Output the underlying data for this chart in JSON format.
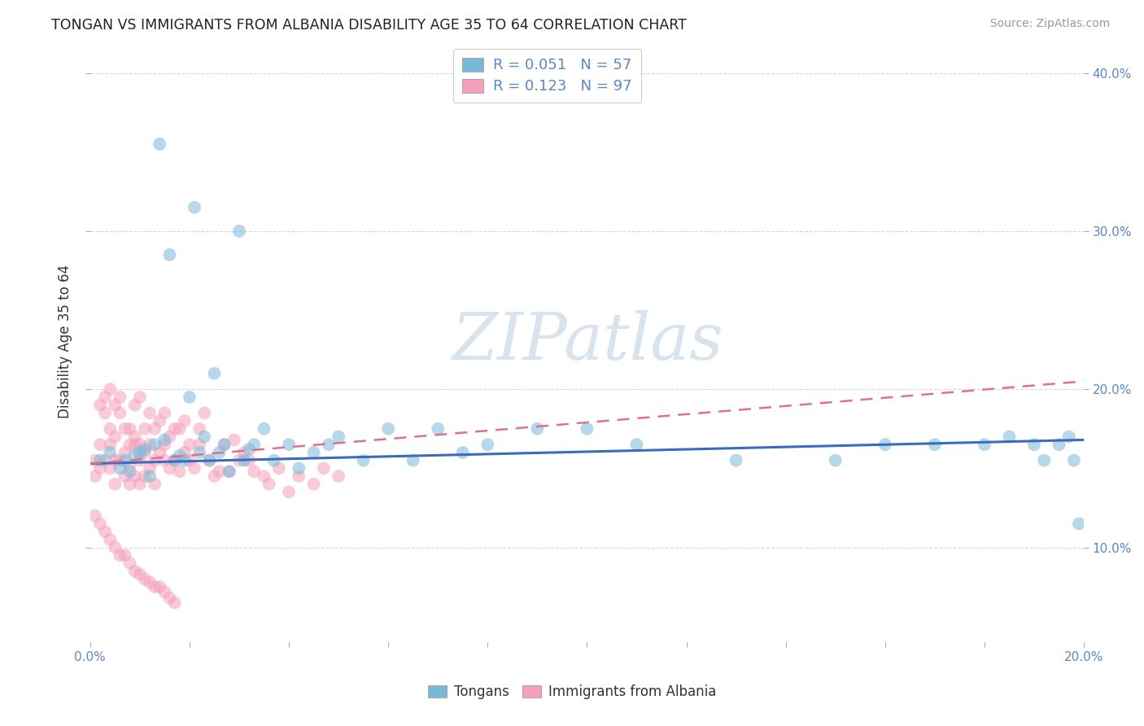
{
  "title": "TONGAN VS IMMIGRANTS FROM ALBANIA DISABILITY AGE 35 TO 64 CORRELATION CHART",
  "source": "Source: ZipAtlas.com",
  "ylabel": "Disability Age 35 to 64",
  "xlim": [
    0.0,
    0.2
  ],
  "ylim": [
    0.04,
    0.42
  ],
  "legend1_text": "R = 0.051   N = 57",
  "legend2_text": "R = 0.123   N = 97",
  "legend_label1": "Tongans",
  "legend_label2": "Immigrants from Albania",
  "tongan_color": "#7ab8d9",
  "albania_color": "#f5a0b8",
  "background_color": "#ffffff",
  "grid_color": "#d8d8d8",
  "watermark_text": "ZIPatlas",
  "tongan_points_x": [
    0.002,
    0.004,
    0.006,
    0.007,
    0.008,
    0.009,
    0.01,
    0.011,
    0.012,
    0.013,
    0.014,
    0.015,
    0.016,
    0.017,
    0.018,
    0.019,
    0.02,
    0.021,
    0.022,
    0.023,
    0.024,
    0.025,
    0.026,
    0.027,
    0.028,
    0.03,
    0.031,
    0.032,
    0.033,
    0.035,
    0.037,
    0.04,
    0.042,
    0.045,
    0.048,
    0.05,
    0.055,
    0.06,
    0.065,
    0.07,
    0.075,
    0.08,
    0.09,
    0.1,
    0.11,
    0.13,
    0.15,
    0.16,
    0.17,
    0.18,
    0.185,
    0.19,
    0.192,
    0.195,
    0.197,
    0.198,
    0.199
  ],
  "tongan_points_y": [
    0.155,
    0.16,
    0.15,
    0.155,
    0.148,
    0.158,
    0.16,
    0.162,
    0.145,
    0.165,
    0.355,
    0.168,
    0.285,
    0.155,
    0.158,
    0.155,
    0.195,
    0.315,
    0.16,
    0.17,
    0.155,
    0.21,
    0.16,
    0.165,
    0.148,
    0.3,
    0.155,
    0.162,
    0.165,
    0.175,
    0.155,
    0.165,
    0.15,
    0.16,
    0.165,
    0.17,
    0.155,
    0.175,
    0.155,
    0.175,
    0.16,
    0.165,
    0.175,
    0.175,
    0.165,
    0.155,
    0.155,
    0.165,
    0.165,
    0.165,
    0.17,
    0.165,
    0.155,
    0.165,
    0.17,
    0.155,
    0.115
  ],
  "albania_points_x": [
    0.001,
    0.001,
    0.002,
    0.002,
    0.002,
    0.003,
    0.003,
    0.003,
    0.004,
    0.004,
    0.004,
    0.004,
    0.005,
    0.005,
    0.005,
    0.005,
    0.006,
    0.006,
    0.006,
    0.007,
    0.007,
    0.007,
    0.008,
    0.008,
    0.008,
    0.008,
    0.009,
    0.009,
    0.009,
    0.009,
    0.01,
    0.01,
    0.01,
    0.01,
    0.011,
    0.011,
    0.011,
    0.012,
    0.012,
    0.012,
    0.013,
    0.013,
    0.013,
    0.014,
    0.014,
    0.015,
    0.015,
    0.015,
    0.016,
    0.016,
    0.017,
    0.017,
    0.018,
    0.018,
    0.019,
    0.019,
    0.02,
    0.02,
    0.021,
    0.022,
    0.022,
    0.023,
    0.024,
    0.025,
    0.026,
    0.027,
    0.028,
    0.029,
    0.03,
    0.031,
    0.032,
    0.033,
    0.035,
    0.036,
    0.038,
    0.04,
    0.042,
    0.045,
    0.047,
    0.05,
    0.001,
    0.002,
    0.003,
    0.004,
    0.005,
    0.006,
    0.007,
    0.008,
    0.009,
    0.01,
    0.011,
    0.012,
    0.013,
    0.014,
    0.015,
    0.016,
    0.017
  ],
  "albania_points_y": [
    0.155,
    0.145,
    0.19,
    0.165,
    0.15,
    0.185,
    0.195,
    0.155,
    0.2,
    0.175,
    0.165,
    0.15,
    0.19,
    0.17,
    0.155,
    0.14,
    0.185,
    0.195,
    0.155,
    0.175,
    0.16,
    0.145,
    0.152,
    0.175,
    0.165,
    0.14,
    0.165,
    0.19,
    0.17,
    0.145,
    0.155,
    0.165,
    0.195,
    0.14,
    0.16,
    0.175,
    0.145,
    0.15,
    0.165,
    0.185,
    0.155,
    0.175,
    0.14,
    0.16,
    0.18,
    0.155,
    0.165,
    0.185,
    0.15,
    0.17,
    0.155,
    0.175,
    0.148,
    0.175,
    0.16,
    0.18,
    0.155,
    0.165,
    0.15,
    0.175,
    0.165,
    0.185,
    0.155,
    0.145,
    0.148,
    0.165,
    0.148,
    0.168,
    0.155,
    0.16,
    0.155,
    0.148,
    0.145,
    0.14,
    0.15,
    0.135,
    0.145,
    0.14,
    0.15,
    0.145,
    0.12,
    0.115,
    0.11,
    0.105,
    0.1,
    0.095,
    0.095,
    0.09,
    0.085,
    0.083,
    0.08,
    0.078,
    0.075,
    0.075,
    0.072,
    0.068,
    0.065
  ],
  "tongan_line_x": [
    0.0,
    0.2
  ],
  "tongan_line_y": [
    0.153,
    0.168
  ],
  "albania_line_x": [
    0.0,
    0.2
  ],
  "albania_line_y": [
    0.153,
    0.205
  ]
}
